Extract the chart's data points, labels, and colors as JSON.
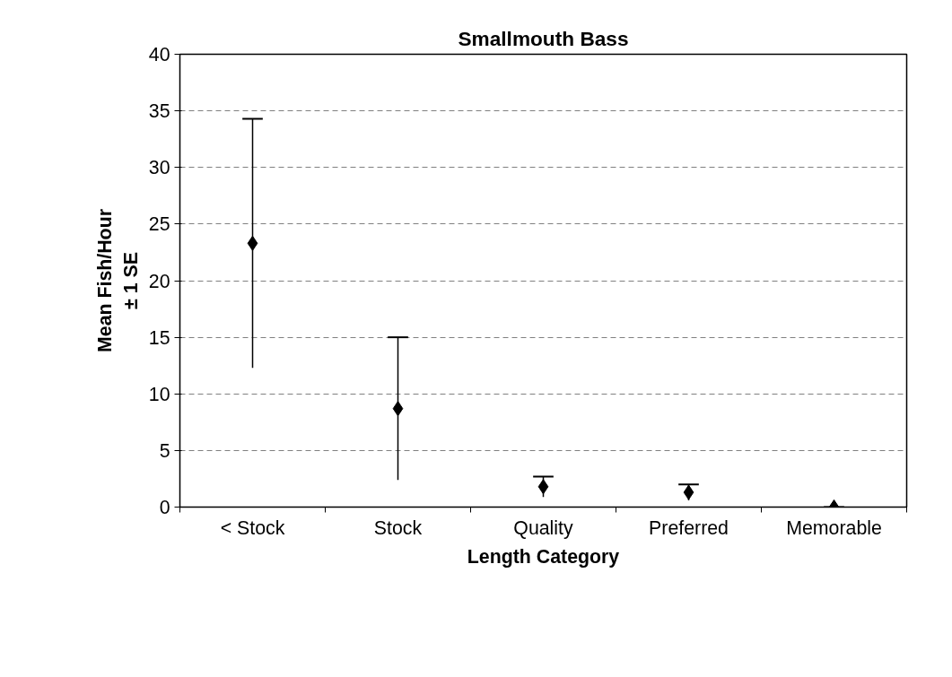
{
  "chart_data": {
    "type": "scatter",
    "title": "Smallmouth Bass",
    "xlabel": "Length Category",
    "ylabel": "Mean Fish/Hour\n± 1 SE",
    "categories": [
      "< Stock",
      "Stock",
      "Quality",
      "Preferred",
      "Memorable"
    ],
    "series": [
      {
        "color": "#000000",
        "values": [
          23.3,
          8.7,
          1.8,
          1.3,
          0
        ],
        "errors": [
          11.0,
          6.3,
          0.9,
          0.7,
          0
        ]
      }
    ],
    "ylim": [
      0,
      40
    ],
    "yticks": [
      0,
      5,
      10,
      15,
      20,
      25,
      30,
      35,
      40
    ],
    "grid": "y",
    "marker": "diamond"
  }
}
